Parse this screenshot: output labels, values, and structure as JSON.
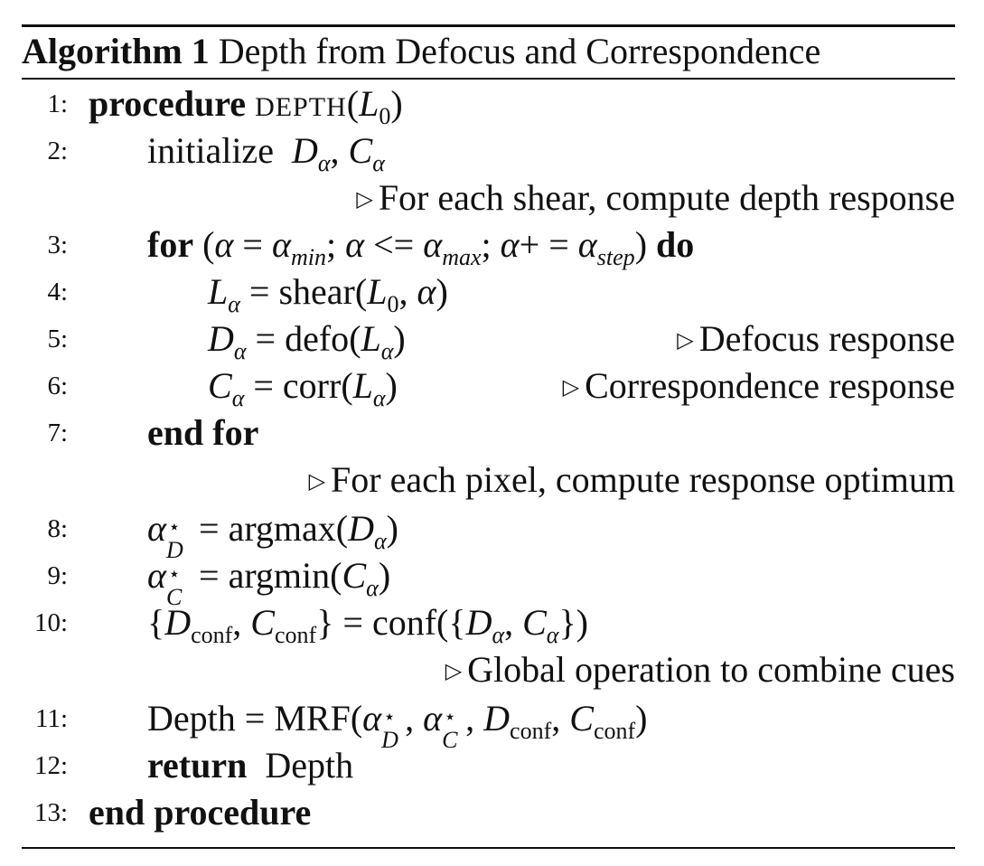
{
  "header": {
    "label": "Algorithm 1",
    "title": "Depth from Defocus and Correspondence"
  },
  "keywords": {
    "procedure": "procedure",
    "proc_name": "DEPTH",
    "initialize": "initialize",
    "for": "for",
    "do": "do",
    "end_for": "end for",
    "return": "return",
    "end_procedure": "end procedure"
  },
  "functions": {
    "shear": "shear",
    "defo": "defo",
    "corr": "corr",
    "argmax": "argmax",
    "argmin": "argmin",
    "conf": "conf",
    "mrf": "MRF",
    "depth": "Depth"
  },
  "subscripts": {
    "min": "min",
    "max": "max",
    "step": "step",
    "conf": "conf",
    "zero": "0"
  },
  "comments": {
    "shear_response": "For each shear, compute depth response",
    "defocus": "Defocus response",
    "correspondence": "Correspondence response",
    "pixel_optimum": "For each pixel, compute response optimum",
    "global": "Global operation to combine cues"
  },
  "line_numbers": [
    "1:",
    "2:",
    "3:",
    "4:",
    "5:",
    "6:",
    "7:",
    "8:",
    "9:",
    "10:",
    "11:",
    "12:",
    "13:"
  ]
}
